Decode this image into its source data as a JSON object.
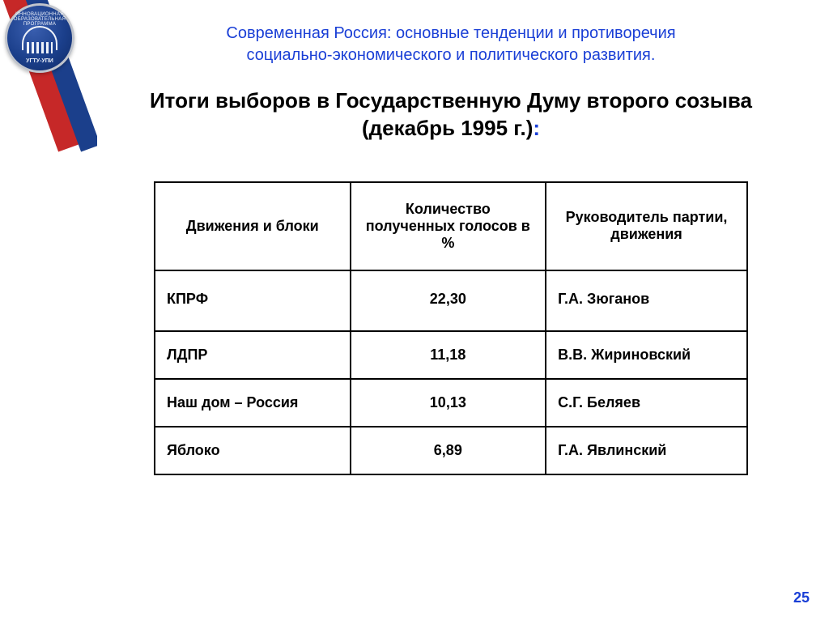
{
  "logo": {
    "top_text": "ИННОВАЦИОННАЯ ОБРАЗОВАТЕЛЬНАЯ ПРОГРАММА",
    "bottom_text": "УГТУ-УПИ"
  },
  "header": {
    "supertitle_line1": "Современная Россия: основные тенденции и противоречия",
    "supertitle_line2": "социально-экономического и политического развития.",
    "title_line1": "Итоги выборов в Государственную Думу второго созыва",
    "title_line2": "(декабрь 1995 г.)",
    "title_colon": ":"
  },
  "table": {
    "columns": [
      "Движения и блоки",
      "Количество полученных голосов в %",
      "Руководитель партии, движения"
    ],
    "rows": [
      {
        "name": "КПРФ",
        "votes": "22,30",
        "leader": "Г.А. Зюганов"
      },
      {
        "name": "ЛДПР",
        "votes": "11,18",
        "leader": "В.В. Жириновский"
      },
      {
        "name": "Наш дом – Россия",
        "votes": "10,13",
        "leader": "С.Г. Беляев"
      },
      {
        "name": "Яблоко",
        "votes": "6,89",
        "leader": "Г.А. Явлинский"
      }
    ],
    "border_color": "#000000",
    "header_fontsize": 18,
    "cell_fontsize": 18,
    "cell_fontweight": "bold"
  },
  "colors": {
    "link_blue": "#1a3fd6",
    "ribbon_blue": "#1b3f8b",
    "ribbon_red": "#c62828",
    "background": "#ffffff"
  },
  "page_number": "25"
}
